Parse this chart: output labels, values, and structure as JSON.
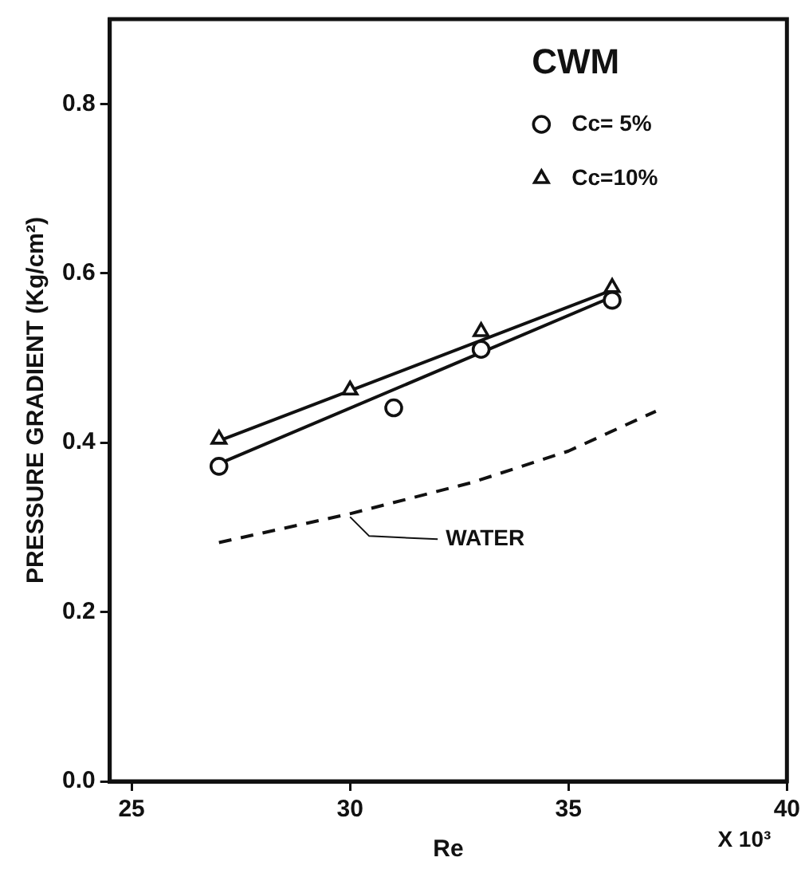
{
  "chart_data": {
    "type": "scatter",
    "xlabel": "Re",
    "ylabel": "PRESSURE GRADIENT (Kg/cm²)",
    "legend_title": "CWM",
    "legend": "top right",
    "grid": false,
    "xlim": [
      24.5,
      40
    ],
    "xticks": [
      25,
      30,
      35,
      40
    ],
    "ylim": [
      0,
      0.9
    ],
    "yticks": [
      {
        "value": 0,
        "label": "0.0"
      },
      0.2,
      0.4,
      0.6,
      0.8
    ],
    "annotations": [
      "X 10³",
      {
        "text": "WATER",
        "x": 30,
        "y": 0.316
      }
    ],
    "series": [
      {
        "name": "Cc= 5%",
        "color": "#111111",
        "marker": "circle",
        "x": [
          27,
          31,
          33,
          36
        ],
        "values": [
          0.372,
          0.441,
          0.51,
          0.568
        ]
      },
      {
        "name": "Cc=10%",
        "color": "#111111",
        "marker": "triangle",
        "x": [
          27,
          30,
          33,
          36
        ],
        "values": [
          0.404,
          0.462,
          0.531,
          0.583
        ]
      },
      {
        "type": "line",
        "color": "#111111",
        "marker": "none",
        "line_style": "solid",
        "x": [
          27,
          36
        ],
        "values": [
          0.375,
          0.572
        ]
      },
      {
        "type": "line",
        "color": "#111111",
        "marker": "none",
        "line_style": "solid",
        "x": [
          27,
          36
        ],
        "values": [
          0.402,
          0.58
        ]
      },
      {
        "type": "line",
        "color": "#111111",
        "marker": "none",
        "line_style": "dashed",
        "x": [
          27,
          30,
          32.8,
          35,
          37
        ],
        "values": [
          0.282,
          0.316,
          0.353,
          0.39,
          0.437
        ]
      }
    ]
  }
}
